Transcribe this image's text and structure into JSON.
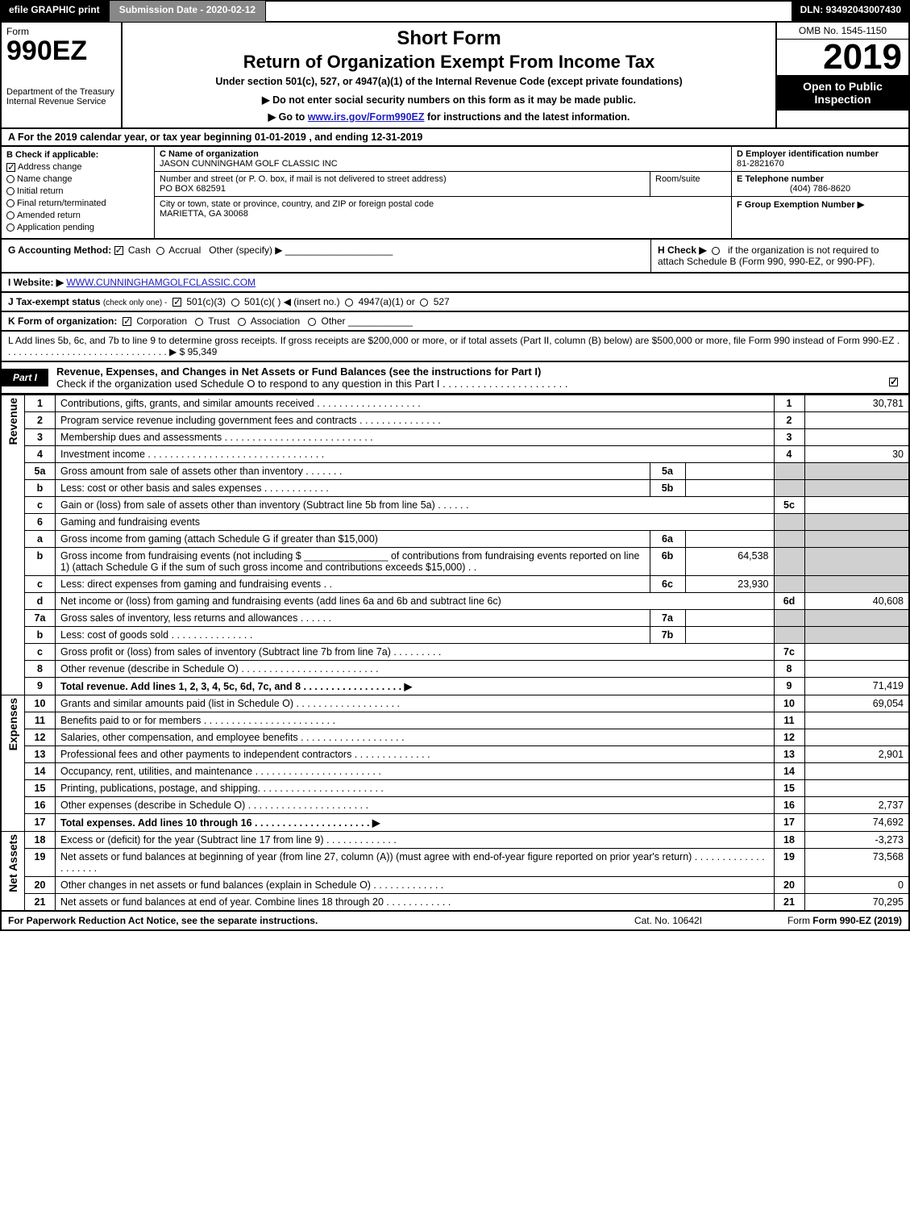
{
  "top_bar": {
    "efile_btn": "efile GRAPHIC print",
    "submission_label": "Submission Date - 2020-02-12",
    "dln": "DLN: 93492043007430"
  },
  "header": {
    "form_label": "Form",
    "form_number": "990EZ",
    "dept": "Department of the Treasury",
    "irs": "Internal Revenue Service",
    "title1": "Short Form",
    "title2": "Return of Organization Exempt From Income Tax",
    "sub1": "Under section 501(c), 527, or 4947(a)(1) of the Internal Revenue Code (except private foundations)",
    "sub2": "▶ Do not enter social security numbers on this form as it may be made public.",
    "sub3_prefix": "▶ Go to ",
    "sub3_link": "www.irs.gov/Form990EZ",
    "sub3_suffix": " for instructions and the latest information.",
    "omb": "OMB No. 1545-1150",
    "year": "2019",
    "open_public": "Open to Public Inspection"
  },
  "row_a": "A For the 2019 calendar year, or tax year beginning 01-01-2019 , and ending 12-31-2019",
  "section_b": {
    "heading": "B Check if applicable:",
    "items": [
      {
        "label": "Address change",
        "checked": true
      },
      {
        "label": "Name change",
        "checked": false
      },
      {
        "label": "Initial return",
        "checked": false
      },
      {
        "label": "Final return/terminated",
        "checked": false
      },
      {
        "label": "Amended return",
        "checked": false
      },
      {
        "label": "Application pending",
        "checked": false
      }
    ]
  },
  "section_c": {
    "c_label": "C Name of organization",
    "org_name": "JASON CUNNINGHAM GOLF CLASSIC INC",
    "addr_label": "Number and street (or P. O. box, if mail is not delivered to street address)",
    "addr_value": "PO BOX 682591",
    "room_label": "Room/suite",
    "room_value": "",
    "city_label": "City or town, state or province, country, and ZIP or foreign postal code",
    "city_value": "MARIETTA, GA  30068"
  },
  "section_d": {
    "ein_label": "D Employer identification number",
    "ein_value": "81-2821670",
    "phone_label": "E Telephone number",
    "phone_value": "(404) 786-8620",
    "group_label": "F Group Exemption Number   ▶"
  },
  "row_g": {
    "label": "G Accounting Method:",
    "cash": "Cash",
    "accrual": "Accrual",
    "other": "Other (specify) ▶"
  },
  "row_h": {
    "text1": "H Check ▶",
    "text2": "if the organization is not required to attach Schedule B (Form 990, 990-EZ, or 990-PF)."
  },
  "row_i": {
    "label": "I Website: ▶",
    "value": "WWW.CUNNINGHAMGOLFCLASSIC.COM"
  },
  "row_j": {
    "label": "J Tax-exempt status",
    "note": "(check only one) -",
    "opt1": "501(c)(3)",
    "opt2": "501(c)(  )  ◀ (insert no.)",
    "opt3": "4947(a)(1) or",
    "opt4": "527"
  },
  "row_k": {
    "label": "K Form of organization:",
    "opts": [
      "Corporation",
      "Trust",
      "Association",
      "Other"
    ]
  },
  "row_l": {
    "text": "L Add lines 5b, 6c, and 7b to line 9 to determine gross receipts. If gross receipts are $200,000 or more, or if total assets (Part II, column (B) below) are $500,000 or more, file Form 990 instead of Form 990-EZ   .  .  .  .  .  .  .  .  .  .  .  .  .  .  .  .  .  .  .  .  .  .  .  .  .  .  .  .  .  .  .  ▶ $ 95,349"
  },
  "part1": {
    "label": "Part I",
    "title": "Revenue, Expenses, and Changes in Net Assets or Fund Balances (see the instructions for Part I)",
    "check_text": "Check if the organization used Schedule O to respond to any question in this Part I  .  .  .  .  .  .  .  .  .  .  .  .  .  .  .  .  .  .  .  .  .  ."
  },
  "revenue_label": "Revenue",
  "expenses_label": "Expenses",
  "netassets_label": "Net Assets",
  "lines": {
    "l1": {
      "n": "1",
      "desc": "Contributions, gifts, grants, and similar amounts received  .  .  .  .  .  .  .  .  .  .  .  .  .  .  .  .  .  .  .",
      "r": "1",
      "amt": "30,781"
    },
    "l2": {
      "n": "2",
      "desc": "Program service revenue including government fees and contracts  .  .  .  .  .  .  .  .  .  .  .  .  .  .  .",
      "r": "2",
      "amt": ""
    },
    "l3": {
      "n": "3",
      "desc": "Membership dues and assessments  .  .  .  .  .  .  .  .  .  .  .  .  .  .  .  .  .  .  .  .  .  .  .  .  .  .  .",
      "r": "3",
      "amt": ""
    },
    "l4": {
      "n": "4",
      "desc": "Investment income  .  .  .  .  .  .  .  .  .  .  .  .  .  .  .  .  .  .  .  .  .  .  .  .  .  .  .  .  .  .  .  .",
      "r": "4",
      "amt": "30"
    },
    "l5a": {
      "n": "5a",
      "desc": "Gross amount from sale of assets other than inventory  .  .  .  .  .  .  .",
      "sn": "5a",
      "samt": ""
    },
    "l5b": {
      "n": "b",
      "desc": "Less: cost or other basis and sales expenses  .  .  .  .  .  .  .  .  .  .  .  .",
      "sn": "5b",
      "samt": ""
    },
    "l5c": {
      "n": "c",
      "desc": "Gain or (loss) from sale of assets other than inventory (Subtract line 5b from line 5a)  .  .  .  .  .  .",
      "r": "5c",
      "amt": ""
    },
    "l6": {
      "n": "6",
      "desc": "Gaming and fundraising events"
    },
    "l6a": {
      "n": "a",
      "desc": "Gross income from gaming (attach Schedule G if greater than $15,000)",
      "sn": "6a",
      "samt": ""
    },
    "l6b": {
      "n": "b",
      "desc": "Gross income from fundraising events (not including $ _______________ of contributions from fundraising events reported on line 1) (attach Schedule G if the sum of such gross income and contributions exceeds $15,000)    .  .",
      "sn": "6b",
      "samt": "64,538"
    },
    "l6c": {
      "n": "c",
      "desc": "Less: direct expenses from gaming and fundraising events          .  .",
      "sn": "6c",
      "samt": "23,930"
    },
    "l6d": {
      "n": "d",
      "desc": "Net income or (loss) from gaming and fundraising events (add lines 6a and 6b and subtract line 6c)",
      "r": "6d",
      "amt": "40,608"
    },
    "l7a": {
      "n": "7a",
      "desc": "Gross sales of inventory, less returns and allowances  .  .  .  .  .  .",
      "sn": "7a",
      "samt": ""
    },
    "l7b": {
      "n": "b",
      "desc": "Less: cost of goods sold          .  .  .  .  .  .  .  .  .  .  .  .  .  .  .",
      "sn": "7b",
      "samt": ""
    },
    "l7c": {
      "n": "c",
      "desc": "Gross profit or (loss) from sales of inventory (Subtract line 7b from line 7a)  .  .  .  .  .  .  .  .  .",
      "r": "7c",
      "amt": ""
    },
    "l8": {
      "n": "8",
      "desc": "Other revenue (describe in Schedule O)  .  .  .  .  .  .  .  .  .  .  .  .  .  .  .  .  .  .  .  .  .  .  .  .  .",
      "r": "8",
      "amt": ""
    },
    "l9": {
      "n": "9",
      "desc": "Total revenue. Add lines 1, 2, 3, 4, 5c, 6d, 7c, and 8   .  .  .  .  .  .  .  .  .  .  .  .  .  .  .  .  .  .  ▶",
      "r": "9",
      "amt": "71,419",
      "bold": true
    },
    "l10": {
      "n": "10",
      "desc": "Grants and similar amounts paid (list in Schedule O)  .  .  .  .  .  .  .  .  .  .  .  .  .  .  .  .  .  .  .",
      "r": "10",
      "amt": "69,054"
    },
    "l11": {
      "n": "11",
      "desc": "Benefits paid to or for members         .  .  .  .  .  .  .  .  .  .  .  .  .  .  .  .  .  .  .  .  .  .  .  .",
      "r": "11",
      "amt": ""
    },
    "l12": {
      "n": "12",
      "desc": "Salaries, other compensation, and employee benefits  .  .  .  .  .  .  .  .  .  .  .  .  .  .  .  .  .  .  .",
      "r": "12",
      "amt": ""
    },
    "l13": {
      "n": "13",
      "desc": "Professional fees and other payments to independent contractors  .  .  .  .  .  .  .  .  .  .  .  .  .  .",
      "r": "13",
      "amt": "2,901"
    },
    "l14": {
      "n": "14",
      "desc": "Occupancy, rent, utilities, and maintenance .  .  .  .  .  .  .  .  .  .  .  .  .  .  .  .  .  .  .  .  .  .  .",
      "r": "14",
      "amt": ""
    },
    "l15": {
      "n": "15",
      "desc": "Printing, publications, postage, and shipping.  .  .  .  .  .  .  .  .  .  .  .  .  .  .  .  .  .  .  .  .  .  .",
      "r": "15",
      "amt": ""
    },
    "l16": {
      "n": "16",
      "desc": "Other expenses (describe in Schedule O)       .  .  .  .  .  .  .  .  .  .  .  .  .  .  .  .  .  .  .  .  .  .",
      "r": "16",
      "amt": "2,737"
    },
    "l17": {
      "n": "17",
      "desc": "Total expenses. Add lines 10 through 16      .  .  .  .  .  .  .  .  .  .  .  .  .  .  .  .  .  .  .  .  .  ▶",
      "r": "17",
      "amt": "74,692",
      "bold": true
    },
    "l18": {
      "n": "18",
      "desc": "Excess or (deficit) for the year (Subtract line 17 from line 9)         .  .  .  .  .  .  .  .  .  .  .  .  .",
      "r": "18",
      "amt": "-3,273"
    },
    "l19": {
      "n": "19",
      "desc": "Net assets or fund balances at beginning of year (from line 27, column (A)) (must agree with end-of-year figure reported on prior year's return) .  .  .  .  .  .  .  .  .  .  .  .  .  .  .  .  .  .  .  .",
      "r": "19",
      "amt": "73,568"
    },
    "l20": {
      "n": "20",
      "desc": "Other changes in net assets or fund balances (explain in Schedule O) .  .  .  .  .  .  .  .  .  .  .  .  .",
      "r": "20",
      "amt": "0"
    },
    "l21": {
      "n": "21",
      "desc": "Net assets or fund balances at end of year. Combine lines 18 through 20 .  .  .  .  .  .  .  .  .  .  .  .",
      "r": "21",
      "amt": "70,295"
    }
  },
  "footer": {
    "left": "For Paperwork Reduction Act Notice, see the separate instructions.",
    "mid": "Cat. No. 10642I",
    "right": "Form 990-EZ (2019)"
  },
  "colors": {
    "black": "#000000",
    "white": "#ffffff",
    "gray_cell": "#d0d0d0",
    "link": "#2020c0"
  }
}
